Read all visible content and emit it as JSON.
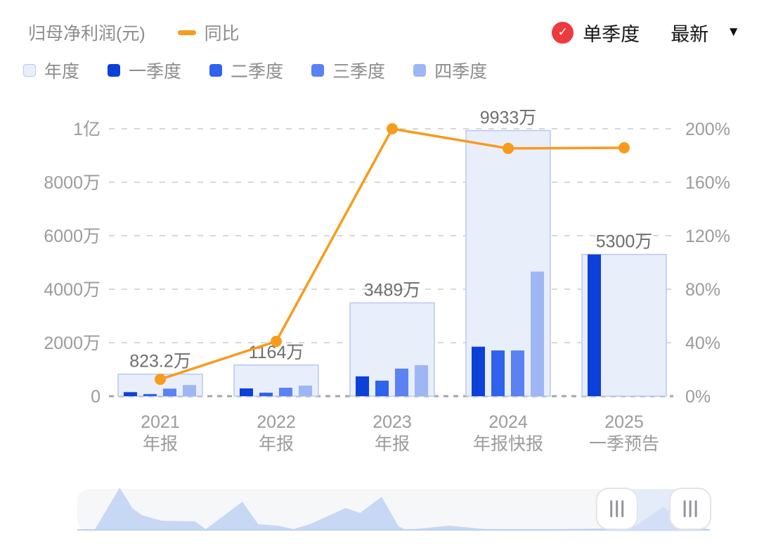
{
  "header": {
    "title": "归母净利润(元)",
    "line_legend": "同比",
    "controls": {
      "check_label": "单季度",
      "latest_label": "最新",
      "check_icon": "check-in-red-circle",
      "caret_icon": "triangle-down"
    }
  },
  "legend": {
    "items": [
      {
        "label": "年度",
        "color": "#e9eefb",
        "border": "#b7c8f2"
      },
      {
        "label": "一季度",
        "color": "#0b41d8",
        "border": "#0b41d8"
      },
      {
        "label": "二季度",
        "color": "#2f63ee",
        "border": "#2f63ee"
      },
      {
        "label": "三季度",
        "color": "#5a82f2",
        "border": "#5a82f2"
      },
      {
        "label": "四季度",
        "color": "#9fb6f5",
        "border": "#9fb6f5"
      }
    ]
  },
  "chart_data": {
    "type": "bar",
    "title": "归母净利润(元)",
    "unit": "万元",
    "categories": [
      {
        "year": "2021",
        "period": "年报"
      },
      {
        "year": "2022",
        "period": "年报"
      },
      {
        "year": "2023",
        "period": "年报"
      },
      {
        "year": "2024",
        "period": "年报快报"
      },
      {
        "year": "2025",
        "period": "一季预告"
      }
    ],
    "annual_series": {
      "name": "年度",
      "values": [
        823.2,
        1164,
        3489,
        9933,
        5300
      ],
      "labels": [
        "823.2万",
        "1164万",
        "3489万",
        "9933万",
        "5300万"
      ]
    },
    "quarter_series": [
      {
        "name": "一季度",
        "values": [
          150,
          290,
          740,
          1850,
          5300
        ]
      },
      {
        "name": "二季度",
        "values": [
          80,
          130,
          580,
          1710,
          null
        ]
      },
      {
        "name": "三季度",
        "values": [
          280,
          315,
          1030,
          1710,
          null
        ]
      },
      {
        "name": "四季度",
        "values": [
          415,
          395,
          1160,
          4660,
          null
        ]
      }
    ],
    "line_series": {
      "name": "同比",
      "values_pct": [
        12.6,
        41,
        200,
        185.3,
        185.8
      ]
    },
    "left_axis": {
      "ticks": [
        "0",
        "2000万",
        "4000万",
        "6000万",
        "8000万",
        "1亿"
      ],
      "max_wan": 10000
    },
    "right_axis": {
      "ticks": [
        "0%",
        "40%",
        "80%",
        "120%",
        "160%",
        "200%"
      ],
      "max_pct": 200
    },
    "grid": "dashed-horizontal",
    "legend_position": "top-left",
    "colors": {
      "annual_fill": "#e9eefb",
      "annual_border": "#b7c8f2",
      "q1": "#0b41d8",
      "q2": "#2f63ee",
      "q3": "#5a82f2",
      "q4": "#9fb6f5",
      "line": "#f89b1c",
      "gridline": "#d8d8d8",
      "baseline": "#a6a6a6",
      "axis_text": "#9b9b9b",
      "value_label": "#6e6e6e",
      "badge_red": "#ec3b3e"
    }
  },
  "navigator": {
    "area_color": "#c7d8f5",
    "track_color": "#f6f7f9",
    "baseline_color": "#bcd0f4",
    "selection_color": "#dbe5f9",
    "handle_grip_icon": "three-vertical-bars",
    "area_points": [
      [
        0.028,
        0.954
      ],
      [
        0.067,
        0.046
      ],
      [
        0.087,
        0.492
      ],
      [
        0.102,
        0.646
      ],
      [
        0.133,
        0.769
      ],
      [
        0.186,
        0.785
      ],
      [
        0.203,
        0.954
      ],
      [
        0.261,
        0.354
      ],
      [
        0.286,
        0.846
      ],
      [
        0.317,
        0.877
      ],
      [
        0.342,
        0.954
      ],
      [
        0.37,
        0.831
      ],
      [
        0.424,
        0.492
      ],
      [
        0.447,
        0.6
      ],
      [
        0.481,
        0.246
      ],
      [
        0.508,
        0.892
      ],
      [
        0.52,
        0.969
      ],
      [
        0.589,
        0.877
      ],
      [
        0.656,
        0.969
      ],
      [
        0.756,
        0.954
      ],
      [
        0.844,
        0.938
      ],
      [
        0.883,
        0.877
      ],
      [
        0.926,
        0.462
      ],
      [
        0.961,
        0.8
      ],
      [
        1.0,
        0.969
      ]
    ],
    "selected_range": [
      0.853,
      0.969
    ]
  }
}
